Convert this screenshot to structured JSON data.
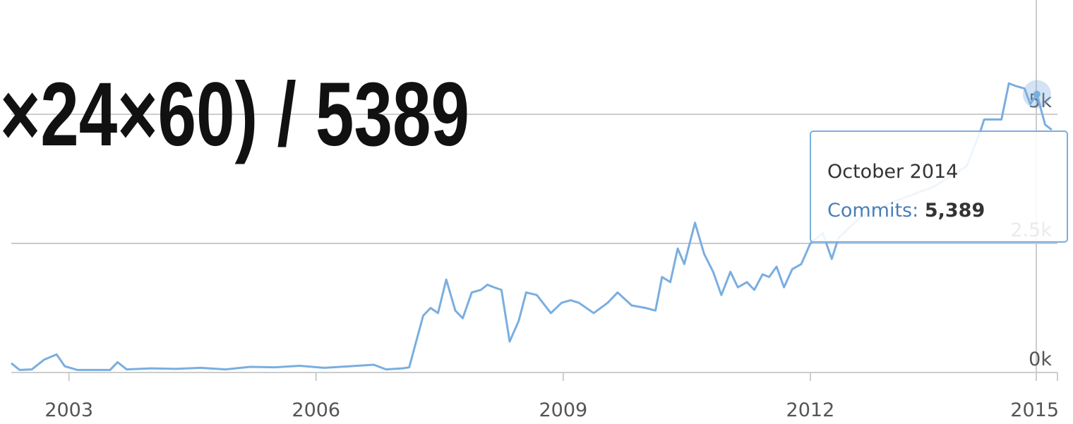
{
  "overlay": {
    "text": "×24×60) / 5389"
  },
  "chart_data": {
    "type": "line",
    "x": [
      2002.3,
      2002.4,
      2002.55,
      2002.7,
      2002.85,
      2002.95,
      2003.1,
      2003.5,
      2003.59,
      2003.7,
      2004.0,
      2004.3,
      2004.6,
      2004.9,
      2005.2,
      2005.5,
      2005.8,
      2006.1,
      2006.4,
      2006.7,
      2006.85,
      2007.05,
      2007.13,
      2007.3,
      2007.39,
      2007.48,
      2007.58,
      2007.69,
      2007.78,
      2007.89,
      2008.0,
      2008.08,
      2008.16,
      2008.25,
      2008.35,
      2008.46,
      2008.55,
      2008.68,
      2008.85,
      2008.98,
      2009.09,
      2009.19,
      2009.37,
      2009.54,
      2009.66,
      2009.83,
      2010.0,
      2010.12,
      2010.2,
      2010.3,
      2010.39,
      2010.47,
      2010.6,
      2010.71,
      2010.82,
      2010.92,
      2011.03,
      2011.12,
      2011.23,
      2011.32,
      2011.42,
      2011.5,
      2011.59,
      2011.68,
      2011.78,
      2011.89,
      2012.0,
      2012.15,
      2012.26,
      2012.34,
      2012.6,
      2013.0,
      2013.5,
      2013.9,
      2014.07,
      2014.11,
      2014.24,
      2014.32,
      2014.41,
      2014.49,
      2014.6,
      2014.67,
      2014.75,
      2014.85,
      2014.93
    ],
    "series": [
      {
        "color": "#7aaee0",
        "values": [
          180,
          50,
          60,
          250,
          350,
          120,
          50,
          50,
          200,
          60,
          80,
          70,
          90,
          60,
          110,
          100,
          130,
          90,
          120,
          150,
          60,
          80,
          100,
          1100,
          1250,
          1150,
          1800,
          1200,
          1050,
          1550,
          1600,
          1700,
          1650,
          1600,
          600,
          1000,
          1550,
          1500,
          1150,
          1350,
          1400,
          1350,
          1150,
          1350,
          1550,
          1300,
          1250,
          1200,
          1850,
          1750,
          2400,
          2100,
          2900,
          2300,
          1950,
          1500,
          1950,
          1650,
          1750,
          1600,
          1900,
          1850,
          2050,
          1650,
          2000,
          2100,
          2500,
          2700,
          2200,
          2600,
          3000,
          3300,
          3600,
          4000,
          4700,
          4900,
          4900,
          4900,
          5600,
          5550,
          5500,
          5200,
          5389,
          4800,
          4700
        ]
      }
    ],
    "xlim": [
      2002.3,
      2015.0
    ],
    "xticks": [
      2003,
      2006,
      2009,
      2012,
      2015
    ],
    "ylim": [
      0,
      7200
    ],
    "yticks": [
      {
        "value": 0,
        "label": "0k"
      },
      {
        "value": 2500,
        "label": "2.5k"
      },
      {
        "value": 5000,
        "label": "5k"
      }
    ],
    "grid": true,
    "tooltip": {
      "title": "October 2014",
      "label": "Commits:",
      "value": 5389,
      "value_label": "5,389"
    }
  }
}
